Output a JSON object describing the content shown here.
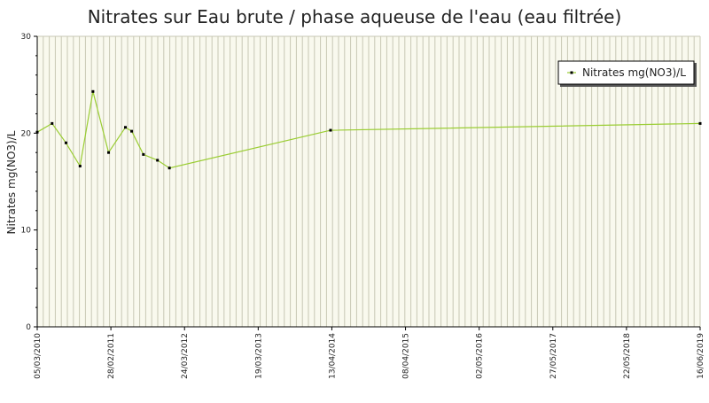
{
  "chart_data": {
    "type": "line",
    "title": "Nitrates sur Eau brute / phase aqueuse de l'eau (eau filtrée)",
    "xlabel": "",
    "ylabel": "Nitrates mg(NO3)/L",
    "ylim": [
      0,
      30
    ],
    "yticks": [
      "0",
      "10",
      "20",
      "30"
    ],
    "xlim": [
      "2010-03-05",
      "2019-06-16"
    ],
    "xtick_labels": [
      "05/03/2010",
      "28/02/2011",
      "24/03/2012",
      "19/03/2013",
      "13/04/2014",
      "08/04/2015",
      "02/05/2016",
      "27/05/2017",
      "22/05/2018",
      "16/06/2019"
    ],
    "grid": "vertical",
    "legend": {
      "position": "top-right"
    },
    "colors": {
      "line": "#9acd32",
      "marker": "#000000",
      "grid": "#c8c8b4",
      "plot_bg": "#f9f9ee"
    },
    "series": [
      {
        "name": "Nitrates mg(NO3)/L",
        "x": [
          "2010-03-05",
          "2010-05-20",
          "2010-07-30",
          "2010-10-10",
          "2010-12-15",
          "2011-03-05",
          "2011-05-30",
          "2011-07-01",
          "2011-08-30",
          "2011-11-10",
          "2012-01-10",
          "2014-04-13",
          "2019-06-16"
        ],
        "y": [
          20.1,
          21.0,
          19.0,
          16.6,
          24.3,
          18.0,
          20.6,
          20.2,
          17.8,
          17.2,
          16.4,
          20.3,
          21.0
        ]
      }
    ]
  }
}
